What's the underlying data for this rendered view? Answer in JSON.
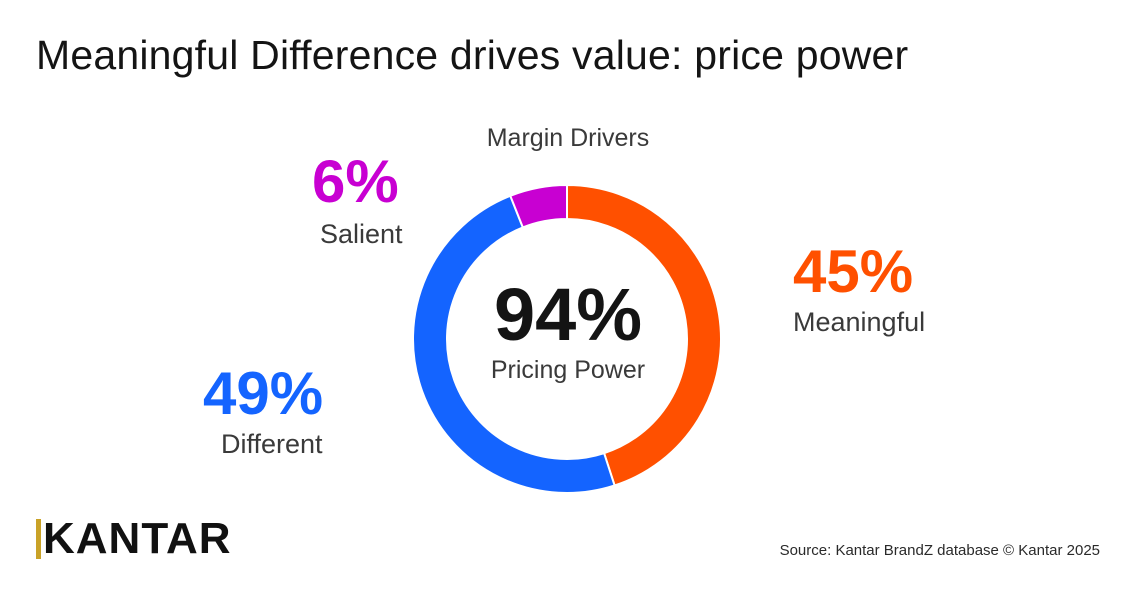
{
  "title": "Meaningful Difference drives value: price power",
  "chart_data": {
    "type": "pie",
    "title": "Margin Drivers",
    "center": {
      "value": "94%",
      "label": "Pricing Power"
    },
    "slices": [
      {
        "name": "Meaningful",
        "value": 45,
        "label": "45%",
        "color": "#ff5000"
      },
      {
        "name": "Different",
        "value": 49,
        "label": "49%",
        "color": "#1464ff"
      },
      {
        "name": "Salient",
        "value": 6,
        "label": "6%",
        "color": "#c800d2"
      }
    ]
  },
  "branding": {
    "logo_text": "KANTAR",
    "logo_accent": "#c9a227"
  },
  "source": "Source: Kantar BrandZ database © Kantar 2025"
}
